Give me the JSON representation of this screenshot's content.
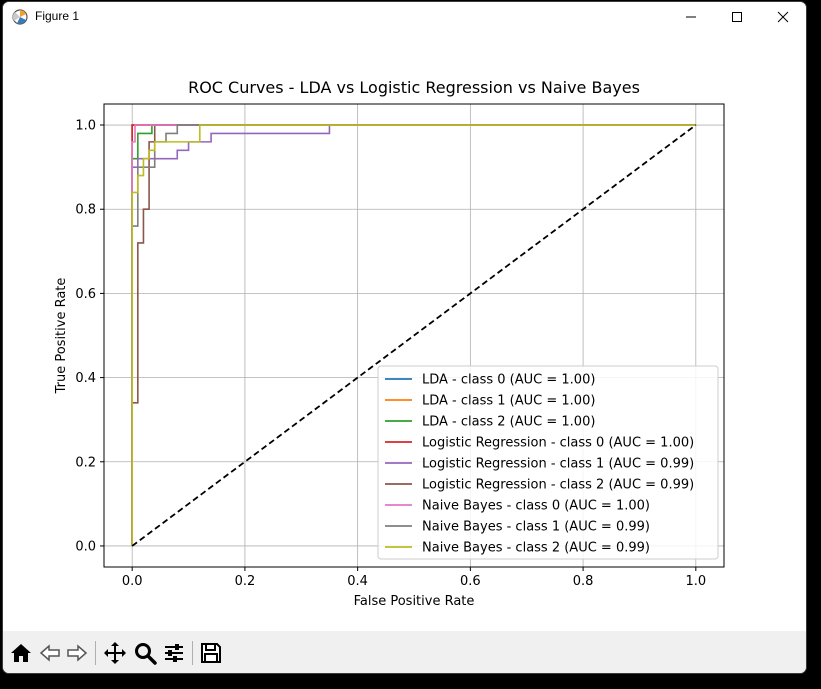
{
  "window": {
    "title": "Figure 1",
    "controls": {
      "minimize": "minimize",
      "maximize": "maximize",
      "close": "close"
    }
  },
  "toolbar": {
    "buttons": [
      {
        "name": "home",
        "icon": "home-icon"
      },
      {
        "name": "back",
        "icon": "arrow-left-icon"
      },
      {
        "name": "forward",
        "icon": "arrow-right-icon"
      },
      {
        "name": "pan",
        "icon": "move-icon"
      },
      {
        "name": "zoom",
        "icon": "zoom-icon"
      },
      {
        "name": "configure",
        "icon": "sliders-icon"
      },
      {
        "name": "save",
        "icon": "save-icon"
      }
    ]
  },
  "chart_data": {
    "type": "line",
    "title": "ROC Curves - LDA vs Logistic Regression vs Naive Bayes",
    "xlabel": "False Positive Rate",
    "ylabel": "True Positive Rate",
    "xlim": [
      -0.05,
      1.05
    ],
    "ylim": [
      -0.05,
      1.05
    ],
    "xticks": [
      "0.0",
      "0.2",
      "0.4",
      "0.6",
      "0.8",
      "1.0"
    ],
    "yticks": [
      "0.0",
      "0.2",
      "0.4",
      "0.6",
      "0.8",
      "1.0"
    ],
    "xtick_values": [
      0.0,
      0.2,
      0.4,
      0.6,
      0.8,
      1.0
    ],
    "ytick_values": [
      0.0,
      0.2,
      0.4,
      0.6,
      0.8,
      1.0
    ],
    "grid": true,
    "legend_position": "lower-right",
    "series": [
      {
        "name": "LDA - class 0 (AUC = 1.00)",
        "color": "#1f77b4",
        "x": [
          0,
          0,
          1
        ],
        "y": [
          0,
          1,
          1
        ]
      },
      {
        "name": "LDA - class 1 (AUC = 1.00)",
        "color": "#ff7f0e",
        "x": [
          0,
          0,
          1
        ],
        "y": [
          0,
          1,
          1
        ]
      },
      {
        "name": "LDA - class 2 (AUC = 1.00)",
        "color": "#2ca02c",
        "x": [
          0,
          0,
          0.01,
          0.01,
          0.035,
          0.035,
          1
        ],
        "y": [
          0,
          0.92,
          0.92,
          0.98,
          0.98,
          1,
          1
        ]
      },
      {
        "name": "Logistic Regression - class 0 (AUC = 1.00)",
        "color": "#d62728",
        "x": [
          0,
          0,
          1
        ],
        "y": [
          0,
          1,
          1
        ]
      },
      {
        "name": "Logistic Regression - class 1 (AUC = 0.99)",
        "color": "#9467bd",
        "x": [
          0,
          0,
          0.01,
          0.01,
          0.03,
          0.03,
          0.08,
          0.08,
          0.1,
          0.1,
          0.14,
          0.14,
          0.35,
          0.35,
          1
        ],
        "y": [
          0,
          0.9,
          0.9,
          0.92,
          0.92,
          0.92,
          0.92,
          0.94,
          0.94,
          0.96,
          0.96,
          0.98,
          0.98,
          1,
          1
        ]
      },
      {
        "name": "Logistic Regression - class 2 (AUC = 0.99)",
        "color": "#8c564b",
        "x": [
          0,
          0,
          0.01,
          0.01,
          0.02,
          0.02,
          0.03,
          0.03,
          0.04,
          0.04,
          1
        ],
        "y": [
          0,
          0.34,
          0.34,
          0.72,
          0.72,
          0.8,
          0.8,
          0.96,
          0.96,
          1,
          1
        ]
      },
      {
        "name": "Naive Bayes - class 0 (AUC = 1.00)",
        "color": "#e377c2",
        "x": [
          0,
          0,
          0.005,
          0.005,
          1
        ],
        "y": [
          0,
          0.96,
          0.96,
          1,
          1
        ]
      },
      {
        "name": "Naive Bayes - class 1 (AUC = 0.99)",
        "color": "#7f7f7f",
        "x": [
          0,
          0,
          0.01,
          0.01,
          0.04,
          0.04,
          0.06,
          0.06,
          0.08,
          0.08,
          1
        ],
        "y": [
          0,
          0.76,
          0.76,
          0.9,
          0.9,
          0.96,
          0.96,
          0.98,
          0.98,
          1,
          1
        ]
      },
      {
        "name": "Naive Bayes - class 2 (AUC = 0.99)",
        "color": "#bcbd22",
        "x": [
          0,
          0,
          0.01,
          0.01,
          0.02,
          0.02,
          0.03,
          0.03,
          0.04,
          0.04,
          0.06,
          0.06,
          0.12,
          0.12,
          1
        ],
        "y": [
          0,
          0.84,
          0.84,
          0.88,
          0.88,
          0.92,
          0.92,
          0.94,
          0.94,
          0.96,
          0.96,
          0.96,
          0.96,
          1,
          1
        ]
      }
    ],
    "reference_line": {
      "x": [
        0,
        1
      ],
      "y": [
        0,
        1
      ],
      "color": "#000000",
      "style": "dashed"
    }
  }
}
